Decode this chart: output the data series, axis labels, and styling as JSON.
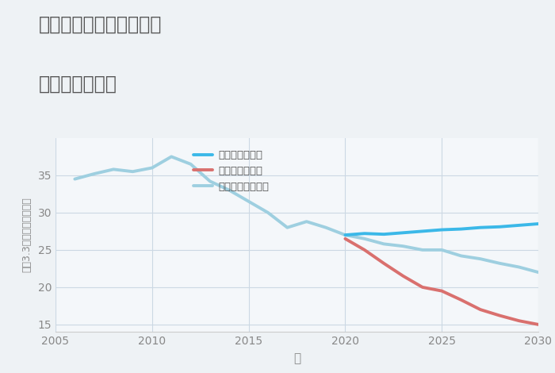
{
  "title_line1": "愛知県常滑市鯉江本町の",
  "title_line2": "土地の価格推移",
  "xlabel": "年",
  "ylabel": "坪（3.3㎡）単価（万円）",
  "background_color": "#eef2f5",
  "plot_background_color": "#f4f7fa",
  "xlim": [
    2005,
    2030
  ],
  "ylim": [
    14,
    40
  ],
  "yticks": [
    15,
    20,
    25,
    30,
    35
  ],
  "xticks": [
    2005,
    2010,
    2015,
    2020,
    2025,
    2030
  ],
  "good_scenario": {
    "label": "グッドシナリオ",
    "color": "#3bb8e8",
    "linewidth": 2.8,
    "x": [
      2020,
      2021,
      2022,
      2023,
      2024,
      2025,
      2026,
      2027,
      2028,
      2029,
      2030
    ],
    "y": [
      27.0,
      27.2,
      27.1,
      27.3,
      27.5,
      27.7,
      27.8,
      28.0,
      28.1,
      28.3,
      28.5
    ]
  },
  "bad_scenario": {
    "label": "バッドシナリオ",
    "color": "#d9706e",
    "linewidth": 2.8,
    "x": [
      2020,
      2021,
      2022,
      2023,
      2024,
      2025,
      2026,
      2027,
      2028,
      2029,
      2030
    ],
    "y": [
      26.5,
      25.0,
      23.2,
      21.5,
      20.0,
      19.5,
      18.3,
      17.0,
      16.2,
      15.5,
      15.0
    ]
  },
  "normal_scenario": {
    "label": "ノーマルシナリオ",
    "color": "#9ecfe0",
    "linewidth": 2.8,
    "x": [
      2006,
      2007,
      2008,
      2009,
      2010,
      2011,
      2012,
      2013,
      2014,
      2015,
      2016,
      2017,
      2018,
      2019,
      2020,
      2021,
      2022,
      2023,
      2024,
      2025,
      2026,
      2027,
      2028,
      2029,
      2030
    ],
    "y": [
      34.5,
      35.2,
      35.8,
      35.5,
      36.0,
      37.5,
      36.5,
      34.2,
      33.0,
      31.5,
      30.0,
      28.0,
      28.8,
      28.0,
      27.0,
      26.5,
      25.8,
      25.5,
      25.0,
      25.0,
      24.2,
      23.8,
      23.2,
      22.7,
      22.0
    ]
  },
  "legend_loc": "upper left",
  "title_color": "#555555",
  "axis_color": "#cccccc",
  "grid_color": "#ccd8e4",
  "tick_color": "#888888",
  "title_fontsize": 17,
  "tick_fontsize": 10,
  "ylabel_fontsize": 9,
  "xlabel_fontsize": 11
}
